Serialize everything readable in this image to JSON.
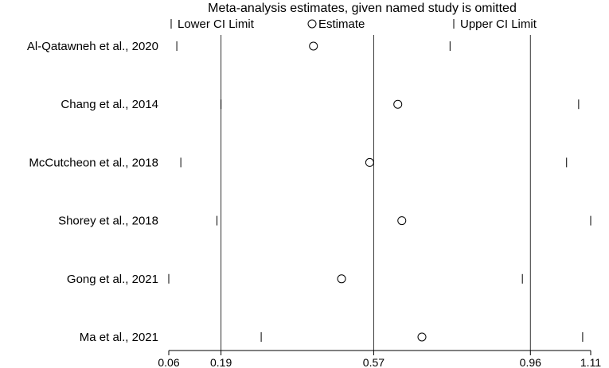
{
  "chart_data": {
    "type": "forest",
    "title": "Meta-analysis estimates, given named study is omitted",
    "legend": {
      "lower": "Lower CI Limit",
      "estimate": "Estimate",
      "upper": "Upper CI Limit",
      "placement": "top"
    },
    "xlim": [
      0.06,
      1.11
    ],
    "xticks": [
      "0.06",
      "0.19",
      "0.57",
      "0.96",
      "1.11"
    ],
    "reference_lines": [
      0.19,
      0.57,
      0.96
    ],
    "studies": [
      {
        "label": "Al-Qatawneh et al., 2020",
        "lower": 0.08,
        "estimate": 0.42,
        "upper": 0.76
      },
      {
        "label": "Chang et al., 2014",
        "lower": 0.19,
        "estimate": 0.63,
        "upper": 1.08
      },
      {
        "label": "McCutcheon et al., 2018",
        "lower": 0.09,
        "estimate": 0.56,
        "upper": 1.05
      },
      {
        "label": "Shorey et al., 2018",
        "lower": 0.18,
        "estimate": 0.64,
        "upper": 1.11
      },
      {
        "label": "Gong et al., 2021",
        "lower": 0.06,
        "estimate": 0.49,
        "upper": 0.94
      },
      {
        "label": "Ma et al., 2021",
        "lower": 0.29,
        "estimate": 0.69,
        "upper": 1.09
      }
    ]
  }
}
